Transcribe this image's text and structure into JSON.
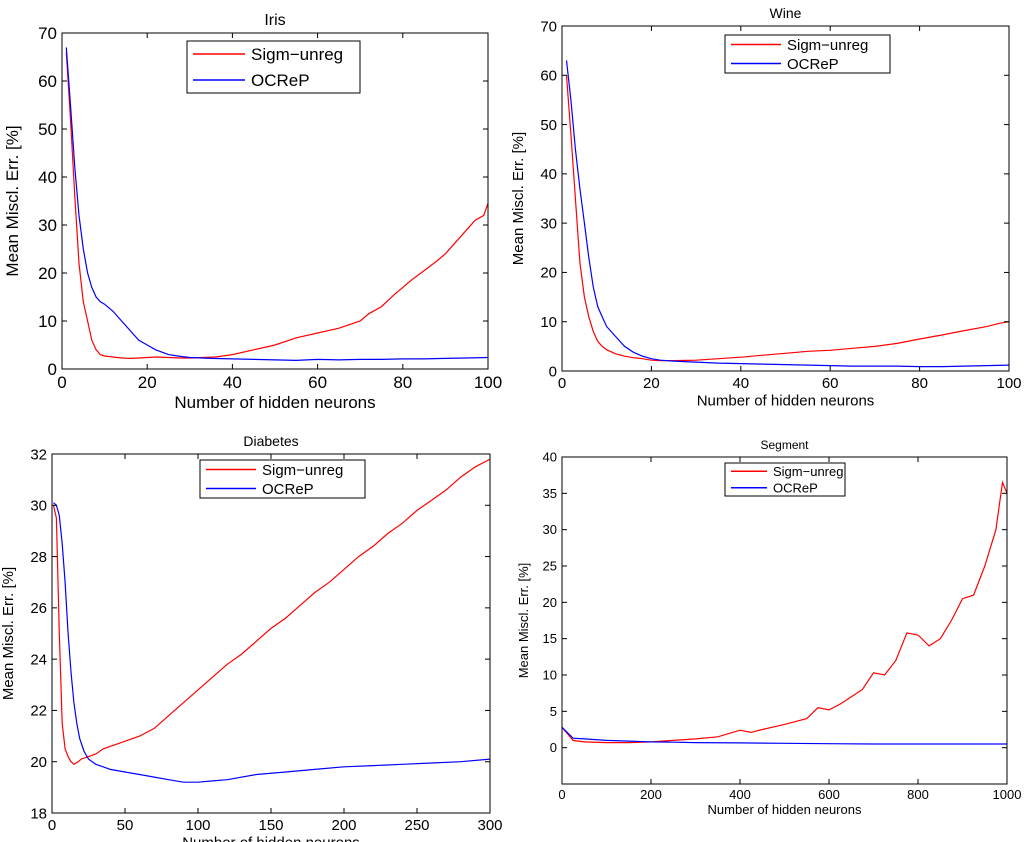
{
  "chart_data": [
    {
      "type": "line",
      "title": "Iris",
      "xlabel": "Number of hidden neurons",
      "ylabel": "Mean Miscl. Err. [%]",
      "xlim": [
        0,
        100
      ],
      "ylim": [
        0,
        70
      ],
      "xticks": [
        "0",
        "20",
        "40",
        "60",
        "80",
        "100"
      ],
      "yticks": [
        "0",
        "10",
        "20",
        "30",
        "40",
        "50",
        "60",
        "70"
      ],
      "grid": false,
      "legend": "top-center",
      "series": [
        {
          "name": "Sigm−unreg",
          "color": "#ff0000",
          "x": [
            1,
            2,
            3,
            4,
            5,
            6,
            7,
            8,
            9,
            10,
            12,
            14,
            16,
            18,
            20,
            22,
            25,
            28,
            30,
            33,
            36,
            40,
            45,
            50,
            55,
            60,
            65,
            70,
            72,
            75,
            78,
            80,
            82,
            85,
            88,
            90,
            92,
            95,
            97,
            99,
            100
          ],
          "y": [
            66,
            52,
            36,
            22,
            14,
            10,
            6,
            4,
            3,
            2.7,
            2.5,
            2.3,
            2.2,
            2.3,
            2.4,
            2.5,
            2.4,
            2.3,
            2.3,
            2.4,
            2.5,
            3,
            4,
            5,
            6.5,
            7.5,
            8.5,
            10,
            11.5,
            13,
            15.5,
            17,
            18.5,
            20.5,
            22.5,
            24,
            26,
            29,
            31,
            32,
            34.5
          ]
        },
        {
          "name": "OCReP",
          "color": "#0000ff",
          "x": [
            1,
            2,
            3,
            4,
            5,
            6,
            7,
            8,
            9,
            10,
            12,
            14,
            16,
            18,
            20,
            22,
            25,
            28,
            30,
            35,
            40,
            45,
            50,
            55,
            60,
            65,
            70,
            75,
            80,
            85,
            90,
            95,
            100
          ],
          "y": [
            67,
            55,
            42,
            32,
            25,
            20,
            17,
            15,
            14,
            13.5,
            12,
            10,
            8,
            6,
            5,
            4,
            3,
            2.6,
            2.4,
            2.2,
            2.1,
            2.0,
            1.9,
            1.8,
            2.0,
            1.9,
            2.0,
            2.0,
            2.1,
            2.1,
            2.2,
            2.3,
            2.4
          ]
        }
      ]
    },
    {
      "type": "line",
      "title": "Wine",
      "xlabel": "Number of hidden neurons",
      "ylabel": "Mean Miscl. Err. [%]",
      "xlim": [
        0,
        100
      ],
      "ylim": [
        0,
        70
      ],
      "xticks": [
        "0",
        "20",
        "40",
        "60",
        "80",
        "100"
      ],
      "yticks": [
        "0",
        "10",
        "20",
        "30",
        "40",
        "50",
        "60",
        "70"
      ],
      "grid": false,
      "legend": "top-center",
      "series": [
        {
          "name": "Sigm−unreg",
          "color": "#ff0000",
          "x": [
            1,
            2,
            3,
            4,
            5,
            6,
            7,
            8,
            9,
            10,
            12,
            14,
            16,
            18,
            20,
            22,
            25,
            30,
            35,
            40,
            45,
            50,
            55,
            60,
            65,
            70,
            75,
            80,
            85,
            90,
            95,
            98,
            100
          ],
          "y": [
            60,
            48,
            35,
            22,
            15,
            11,
            8,
            6,
            5,
            4.3,
            3.5,
            3,
            2.7,
            2.5,
            2.2,
            2.1,
            2.1,
            2.2,
            2.5,
            2.8,
            3.2,
            3.6,
            4,
            4.2,
            4.6,
            5,
            5.6,
            6.5,
            7.3,
            8.2,
            9,
            9.7,
            10
          ]
        },
        {
          "name": "OCReP",
          "color": "#0000ff",
          "x": [
            1,
            2,
            3,
            4,
            5,
            6,
            7,
            8,
            9,
            10,
            12,
            14,
            16,
            18,
            20,
            22,
            25,
            30,
            35,
            40,
            45,
            50,
            55,
            60,
            65,
            70,
            75,
            80,
            85,
            90,
            95,
            100
          ],
          "y": [
            63,
            55,
            45,
            37,
            30,
            23,
            17,
            13,
            11,
            9,
            7,
            5,
            3.8,
            3,
            2.5,
            2.2,
            2,
            1.8,
            1.6,
            1.5,
            1.4,
            1.3,
            1.2,
            1.1,
            1.0,
            1.0,
            1.0,
            0.9,
            0.9,
            1.0,
            1.1,
            1.2
          ]
        }
      ]
    },
    {
      "type": "line",
      "title": "Diabetes",
      "xlabel": "Number of hidden neurons",
      "ylabel": "Mean Miscl. Err. [%]",
      "xlim": [
        0,
        300
      ],
      "ylim": [
        18,
        32
      ],
      "xticks": [
        "0",
        "50",
        "100",
        "150",
        "200",
        "250",
        "300"
      ],
      "yticks": [
        "18",
        "20",
        "22",
        "24",
        "26",
        "28",
        "30",
        "32"
      ],
      "grid": false,
      "legend": "top-center",
      "series": [
        {
          "name": "Sigm−unreg",
          "color": "#ff0000",
          "x": [
            1,
            3,
            5,
            7,
            9,
            11,
            13,
            15,
            18,
            20,
            25,
            30,
            35,
            40,
            45,
            50,
            60,
            70,
            80,
            90,
            100,
            110,
            120,
            130,
            140,
            150,
            160,
            170,
            180,
            190,
            200,
            210,
            220,
            230,
            240,
            250,
            260,
            270,
            280,
            290,
            300
          ],
          "y": [
            30,
            29.5,
            25,
            21.5,
            20.5,
            20.2,
            20.0,
            19.9,
            20.0,
            20.1,
            20.2,
            20.3,
            20.5,
            20.6,
            20.7,
            20.8,
            21.0,
            21.3,
            21.8,
            22.3,
            22.8,
            23.3,
            23.8,
            24.2,
            24.7,
            25.2,
            25.6,
            26.1,
            26.6,
            27.0,
            27.5,
            28.0,
            28.4,
            28.9,
            29.3,
            29.8,
            30.2,
            30.6,
            31.1,
            31.5,
            31.8
          ]
        },
        {
          "name": "OCReP",
          "color": "#0000ff",
          "x": [
            1,
            3,
            5,
            7,
            9,
            11,
            13,
            15,
            17,
            19,
            22,
            25,
            30,
            35,
            40,
            50,
            60,
            70,
            80,
            90,
            100,
            110,
            120,
            140,
            160,
            180,
            200,
            220,
            240,
            260,
            280,
            300
          ],
          "y": [
            30.1,
            30,
            29.6,
            28.5,
            27,
            25,
            23.5,
            22.3,
            21.5,
            20.9,
            20.4,
            20.1,
            19.9,
            19.8,
            19.7,
            19.6,
            19.5,
            19.4,
            19.3,
            19.2,
            19.2,
            19.25,
            19.3,
            19.5,
            19.6,
            19.7,
            19.8,
            19.85,
            19.9,
            19.95,
            20.0,
            20.1
          ]
        }
      ]
    },
    {
      "type": "line",
      "title": "Segment",
      "xlabel": "Number of hidden neurons",
      "ylabel": "Mean Miscl. Err. [%]",
      "xlim": [
        0,
        1000
      ],
      "ylim": [
        -5,
        40
      ],
      "xticks": [
        "0",
        "200",
        "400",
        "600",
        "800",
        "1000"
      ],
      "yticks": [
        "0",
        "5",
        "10",
        "15",
        "20",
        "25",
        "30",
        "35",
        "40"
      ],
      "grid": false,
      "legend": "top-center",
      "series": [
        {
          "name": "Sigm−unreg",
          "color": "#ff0000",
          "x": [
            0,
            25,
            50,
            100,
            150,
            200,
            250,
            300,
            350,
            400,
            425,
            450,
            500,
            550,
            575,
            600,
            625,
            650,
            675,
            700,
            725,
            750,
            775,
            800,
            825,
            850,
            875,
            900,
            925,
            950,
            975,
            990,
            1000
          ],
          "y": [
            2.8,
            1.0,
            0.8,
            0.7,
            0.7,
            0.8,
            1.0,
            1.2,
            1.5,
            2.4,
            2.1,
            2.5,
            3.2,
            4.0,
            5.5,
            5.2,
            6.0,
            7.0,
            8.0,
            10.3,
            10.0,
            12.0,
            15.8,
            15.5,
            14.0,
            15.0,
            17.5,
            20.5,
            21.0,
            25.0,
            30.0,
            36.5,
            35.0
          ]
        },
        {
          "name": "OCReP",
          "color": "#0000ff",
          "x": [
            0,
            25,
            50,
            100,
            150,
            200,
            250,
            300,
            400,
            500,
            600,
            700,
            800,
            900,
            1000
          ],
          "y": [
            2.8,
            1.3,
            1.2,
            1.0,
            0.9,
            0.8,
            0.75,
            0.7,
            0.65,
            0.6,
            0.55,
            0.5,
            0.5,
            0.5,
            0.5
          ]
        }
      ]
    }
  ]
}
